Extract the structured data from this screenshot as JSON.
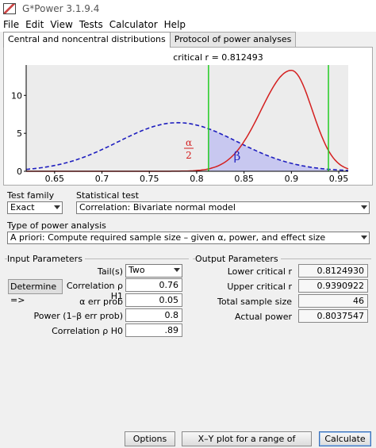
{
  "window": {
    "title": "G*Power 3.1.9.4"
  },
  "menu": [
    "File",
    "Edit",
    "View",
    "Tests",
    "Calculator",
    "Help"
  ],
  "tabs": [
    {
      "label": "Central and noncentral distributions",
      "active": true
    },
    {
      "label": "Protocol of power analyses",
      "active": false
    }
  ],
  "chart_data": {
    "type": "line",
    "title": "critical r = 0.812493",
    "xlabel": "",
    "ylabel": "",
    "xlim": [
      0.62,
      0.96
    ],
    "ylim": [
      0,
      14
    ],
    "x_ticks": [
      0.65,
      0.7,
      0.75,
      0.8,
      0.85,
      0.9,
      0.95
    ],
    "x_tick_labels": [
      "0.65",
      "0.7",
      "0.75",
      "0.8",
      "0.85",
      "0.9",
      "0.95"
    ],
    "y_ticks": [
      0,
      5,
      10
    ],
    "y_tick_labels": [
      "0",
      "5",
      "10"
    ],
    "series": [
      {
        "style": "dashed",
        "color": "#1f1fbf",
        "peak_x": 0.78,
        "peak_y": 6.4,
        "sd": 0.063
      },
      {
        "style": "solid",
        "color": "#d42020",
        "peak_x": 0.9,
        "peak_y": 13.3
      }
    ],
    "critical_lines": [
      0.812493,
      0.9390922
    ],
    "annotations": {
      "alpha_num": "α",
      "alpha_den": "2",
      "beta": "β"
    },
    "colors": {
      "critical": "#22cc22",
      "alpha_region": "#d8d8d8",
      "beta_region": "#c8c8f0"
    }
  },
  "test_family": {
    "label": "Test family",
    "value": "Exact"
  },
  "statistical_test": {
    "label": "Statistical test",
    "value": "Correlation: Bivariate normal model"
  },
  "power_analysis": {
    "label": "Type of power analysis",
    "value": "A priori: Compute required sample size – given α, power, and effect size"
  },
  "input": {
    "title": "Input Parameters",
    "tails_label": "Tail(s)",
    "tails_value": "Two",
    "determine_label": "Determine =>",
    "corr_h1_label": "Correlation ρ H1",
    "corr_h1_value": "0.76",
    "alpha_label": "α err prob",
    "alpha_value": "0.05",
    "power_label": "Power (1–β err prob)",
    "power_value": "0.8",
    "corr_h0_label": "Correlation ρ H0",
    "corr_h0_value": ".89"
  },
  "output": {
    "title": "Output Parameters",
    "lower_label": "Lower critical r",
    "lower_value": "0.8124930",
    "upper_label": "Upper critical r",
    "upper_value": "0.9390922",
    "n_label": "Total sample size",
    "n_value": "46",
    "power_label": "Actual power",
    "power_value": "0.8037547"
  },
  "buttons": {
    "options": "Options",
    "xy_plot": "X–Y plot for a range of values",
    "calculate": "Calculate"
  }
}
